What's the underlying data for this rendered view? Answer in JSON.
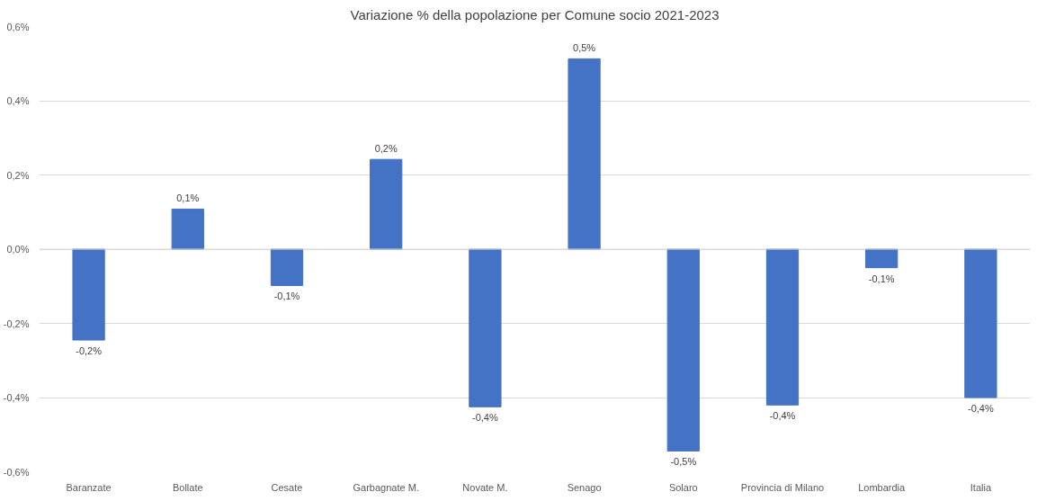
{
  "chart_data": {
    "type": "bar",
    "title": "Variazione % della popolazione per Comune socio 2021-2023",
    "categories": [
      "Baranzate",
      "Bollate",
      "Cesate",
      "Garbagnate M.",
      "Novate M.",
      "Senago",
      "Solaro",
      "Provincia di Milano",
      "Lombardia",
      "Italia"
    ],
    "series": [
      {
        "color": "#4472c4",
        "values": [
          -0.245,
          0.108,
          -0.098,
          0.242,
          -0.425,
          0.513,
          -0.544,
          -0.42,
          -0.05,
          -0.4
        ],
        "value_labels": [
          "-0,2%",
          "0,1%",
          "-0,1%",
          "0,2%",
          "-0,4%",
          "0,5%",
          "-0,5%",
          "-0,4%",
          "-0,1%",
          "-0,4%"
        ]
      }
    ],
    "ylim": [
      -0.6,
      0.6
    ],
    "yticks": [
      {
        "value": -0.6,
        "label": "-0,6%"
      },
      {
        "value": -0.4,
        "label": "-0,4%"
      },
      {
        "value": -0.2,
        "label": "-0,2%"
      },
      {
        "value": 0,
        "label": "0,0%"
      },
      {
        "value": 0.2,
        "label": "0,2%"
      },
      {
        "value": 0.4,
        "label": "0,4%"
      },
      {
        "value": 0.6,
        "label": "0,6%"
      }
    ],
    "grid": "y"
  }
}
